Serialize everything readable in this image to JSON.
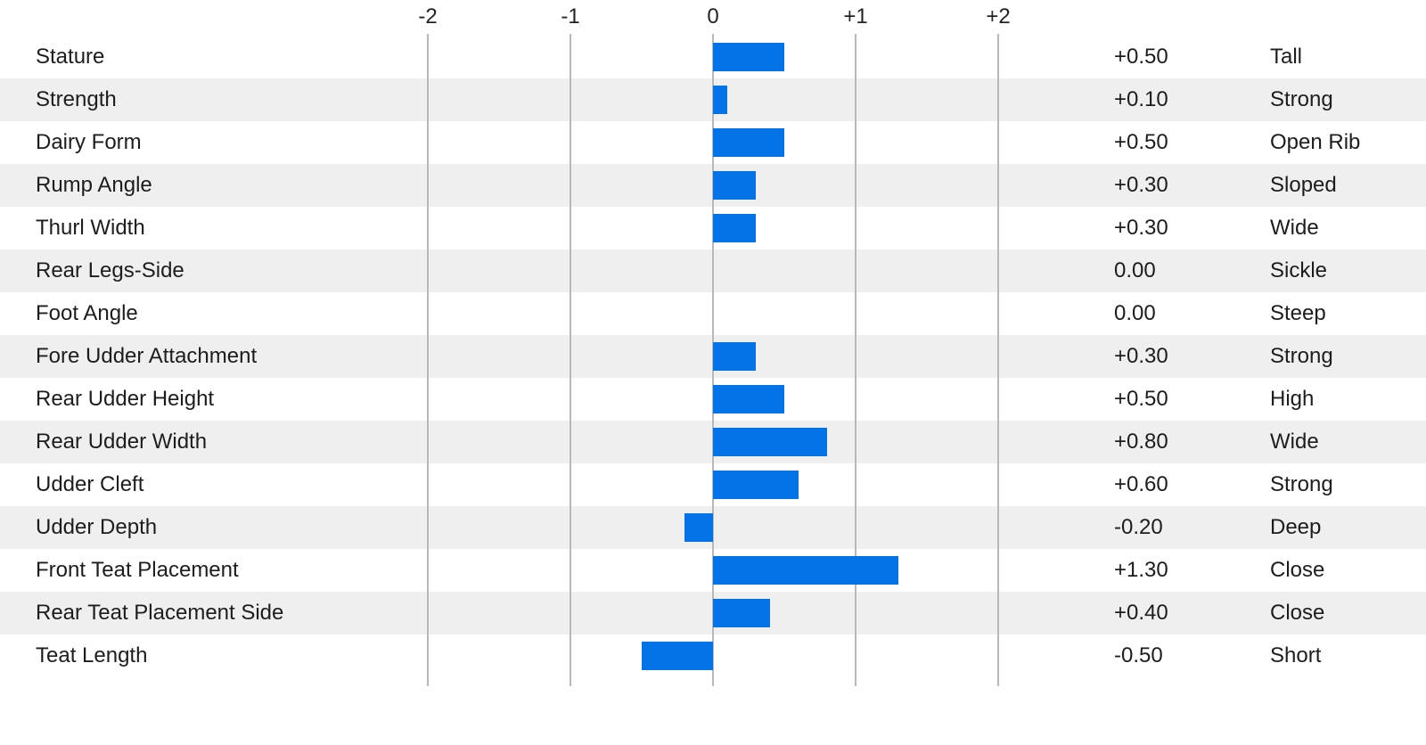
{
  "chart_data": {
    "type": "bar",
    "orientation": "horizontal",
    "title": "",
    "x_axis": {
      "position": "top",
      "tick_labels": [
        "-2",
        "-1",
        "0",
        "+1",
        "+2"
      ],
      "tick_values": [
        -2,
        -1,
        0,
        1,
        2
      ],
      "xlim": [
        -2.5,
        2.5
      ],
      "grid": true
    },
    "legend": "none",
    "rows": [
      {
        "trait": "Stature",
        "value": 0.5,
        "value_label": "+0.50",
        "descriptor": "Tall"
      },
      {
        "trait": "Strength",
        "value": 0.1,
        "value_label": "+0.10",
        "descriptor": "Strong"
      },
      {
        "trait": "Dairy Form",
        "value": 0.5,
        "value_label": "+0.50",
        "descriptor": "Open Rib"
      },
      {
        "trait": "Rump Angle",
        "value": 0.3,
        "value_label": "+0.30",
        "descriptor": "Sloped"
      },
      {
        "trait": "Thurl Width",
        "value": 0.3,
        "value_label": "+0.30",
        "descriptor": "Wide"
      },
      {
        "trait": "Rear Legs-Side",
        "value": 0.0,
        "value_label": "0.00",
        "descriptor": "Sickle"
      },
      {
        "trait": "Foot Angle",
        "value": 0.0,
        "value_label": "0.00",
        "descriptor": "Steep"
      },
      {
        "trait": "Fore Udder Attachment",
        "value": 0.3,
        "value_label": "+0.30",
        "descriptor": "Strong"
      },
      {
        "trait": "Rear Udder Height",
        "value": 0.5,
        "value_label": "+0.50",
        "descriptor": "High"
      },
      {
        "trait": "Rear Udder Width",
        "value": 0.8,
        "value_label": "+0.80",
        "descriptor": "Wide"
      },
      {
        "trait": "Udder Cleft",
        "value": 0.6,
        "value_label": "+0.60",
        "descriptor": "Strong"
      },
      {
        "trait": "Udder Depth",
        "value": -0.2,
        "value_label": "-0.20",
        "descriptor": "Deep"
      },
      {
        "trait": "Front Teat Placement",
        "value": 1.3,
        "value_label": "+1.30",
        "descriptor": "Close"
      },
      {
        "trait": "Rear Teat Placement Side",
        "value": 0.4,
        "value_label": "+0.40",
        "descriptor": "Close"
      },
      {
        "trait": "Teat Length",
        "value": -0.5,
        "value_label": "-0.50",
        "descriptor": "Short"
      }
    ],
    "colors": {
      "bar": "#0473e8",
      "row_stripe": "#efefef",
      "gridline": "#b5b7b9",
      "text": "#1d1d1f",
      "background": "#ffffff"
    }
  }
}
